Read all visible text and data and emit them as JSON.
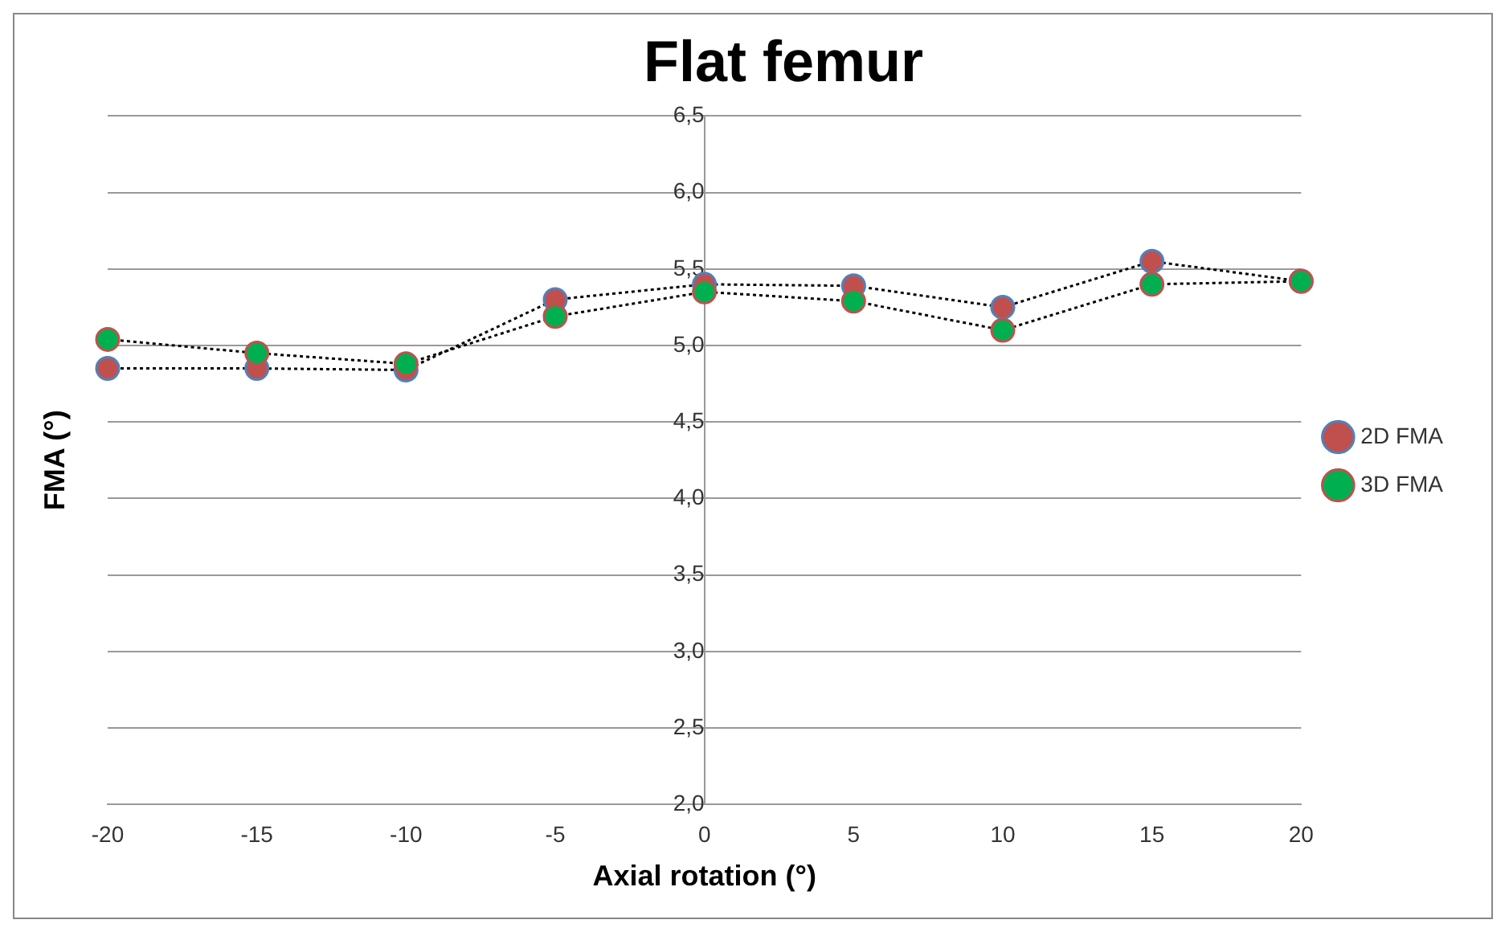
{
  "chart_data": {
    "type": "line",
    "title": "Flat femur",
    "xlabel": "Axial rotation (°)",
    "ylabel": "FMA (°)",
    "x": [
      -20,
      -15,
      -10,
      -5,
      0,
      5,
      10,
      15,
      20
    ],
    "series": [
      {
        "name": "2D FMA",
        "color": "#c0504d",
        "values": [
          4.85,
          4.85,
          4.84,
          5.3,
          5.4,
          5.39,
          5.25,
          5.55,
          5.42
        ]
      },
      {
        "name": "3D FMA",
        "color": "#00b050",
        "values": [
          5.04,
          4.95,
          4.88,
          5.19,
          5.35,
          5.29,
          5.1,
          5.4,
          5.42
        ]
      }
    ],
    "xlim": [
      -20,
      20
    ],
    "xticks": [
      -20,
      -15,
      -10,
      -5,
      0,
      5,
      10,
      15,
      20
    ],
    "ylim": [
      2,
      6.5
    ],
    "yticks": [
      {
        "value": 2,
        "label": "2,0"
      },
      {
        "value": 2.5,
        "label": "2,5"
      },
      {
        "value": 3,
        "label": "3,0"
      },
      {
        "value": 3.5,
        "label": "3,5"
      },
      {
        "value": 4,
        "label": "4,0"
      },
      {
        "value": 4.5,
        "label": "4,5"
      },
      {
        "value": 5,
        "label": "5,0"
      },
      {
        "value": 5.5,
        "label": "5,5"
      },
      {
        "value": 6,
        "label": "6,0"
      },
      {
        "value": 6.5,
        "label": "6,5"
      }
    ],
    "grid": "y",
    "legend": "right",
    "marker": "circle",
    "line_style": "dotted"
  }
}
